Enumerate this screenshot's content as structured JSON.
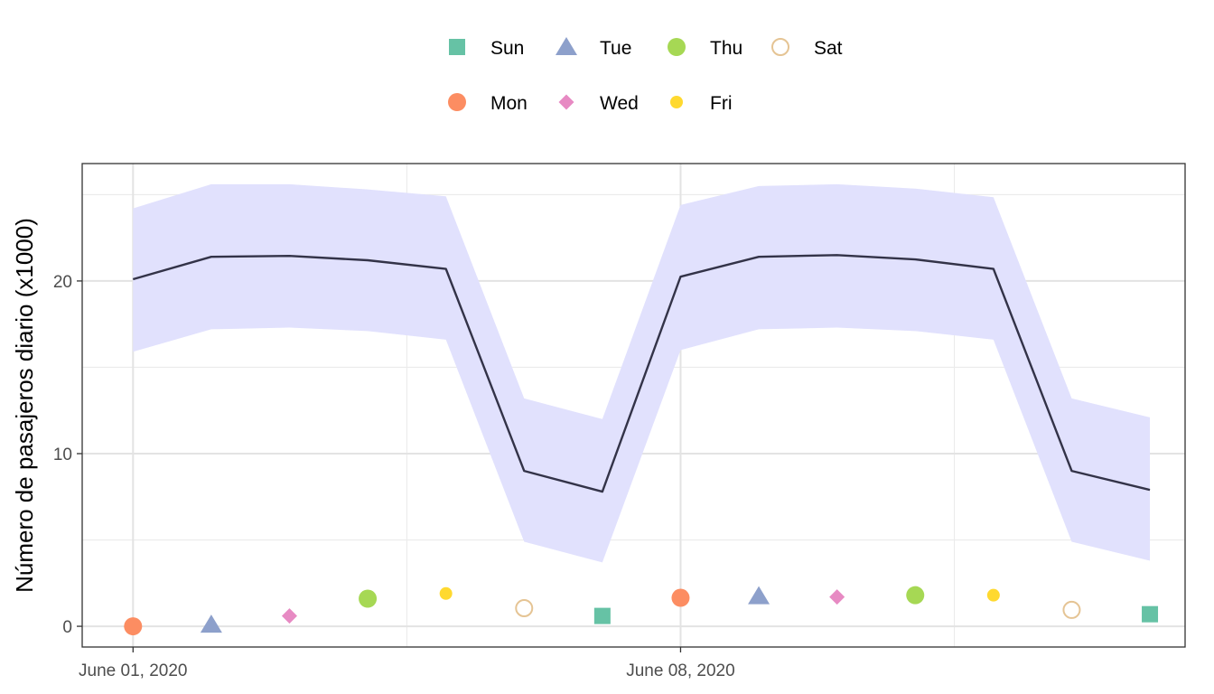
{
  "chart_data": {
    "type": "line",
    "title": "",
    "xlabel": "",
    "ylabel": "Número de pasajeros diario (x1000)",
    "ylim": [
      -1.2,
      26.8
    ],
    "yticks": [
      0,
      10,
      20
    ],
    "y_minor_ticks": [
      5,
      15,
      25
    ],
    "x_tick_labels": [
      "June 01, 2020",
      "June 08, 2020"
    ],
    "x_tick_positions": [
      0,
      7
    ],
    "x_minor_ticks": [
      3.5,
      10.5
    ],
    "xlim": [
      -0.65,
      13.45
    ],
    "grid": true,
    "legend_position": "top",
    "forecast": {
      "name": "forecast",
      "color": "#333348",
      "band_color": "#e1e1fd",
      "x": [
        0,
        1,
        2,
        3,
        4,
        5,
        6,
        7,
        8,
        9,
        10,
        11,
        12,
        13
      ],
      "mean": [
        20.1,
        21.4,
        21.45,
        21.2,
        20.7,
        9.0,
        7.8,
        20.25,
        21.4,
        21.5,
        21.25,
        20.7,
        9.0,
        7.9
      ],
      "lower": [
        15.9,
        17.2,
        17.3,
        17.1,
        16.6,
        4.9,
        3.7,
        16.0,
        17.2,
        17.3,
        17.1,
        16.6,
        4.9,
        3.8
      ],
      "upper": [
        24.2,
        25.6,
        25.6,
        25.3,
        24.9,
        13.2,
        12.0,
        24.4,
        25.5,
        25.6,
        25.35,
        24.85,
        13.2,
        12.1
      ]
    },
    "points": [
      {
        "x": 0,
        "y": 0.0,
        "day": "Mon"
      },
      {
        "x": 1,
        "y": 0.1,
        "day": "Tue"
      },
      {
        "x": 2,
        "y": 0.6,
        "day": "Wed"
      },
      {
        "x": 3,
        "y": 1.6,
        "day": "Thu"
      },
      {
        "x": 4,
        "y": 1.9,
        "day": "Fri"
      },
      {
        "x": 5,
        "y": 1.05,
        "day": "Sat"
      },
      {
        "x": 6,
        "y": 0.6,
        "day": "Sun"
      },
      {
        "x": 7,
        "y": 1.65,
        "day": "Mon"
      },
      {
        "x": 8,
        "y": 1.75,
        "day": "Tue"
      },
      {
        "x": 9,
        "y": 1.7,
        "day": "Wed"
      },
      {
        "x": 10,
        "y": 1.8,
        "day": "Thu"
      },
      {
        "x": 11,
        "y": 1.8,
        "day": "Fri"
      },
      {
        "x": 12,
        "y": 0.95,
        "day": "Sat"
      },
      {
        "x": 13,
        "y": 0.7,
        "day": "Sun"
      }
    ],
    "legend": [
      {
        "label": "Sun",
        "shape": "square",
        "color": "#66c2a5"
      },
      {
        "label": "Tue",
        "shape": "triangle",
        "color": "#8da0cb"
      },
      {
        "label": "Thu",
        "shape": "circle",
        "color": "#a6d854"
      },
      {
        "label": "Sat",
        "shape": "open-circle",
        "color": "#e5c494"
      },
      {
        "label": "Mon",
        "shape": "circle",
        "color": "#fc8d62"
      },
      {
        "label": "Wed",
        "shape": "diamond",
        "color": "#e78ac3"
      },
      {
        "label": "Fri",
        "shape": "small-circle",
        "color": "#ffd92f"
      }
    ]
  }
}
